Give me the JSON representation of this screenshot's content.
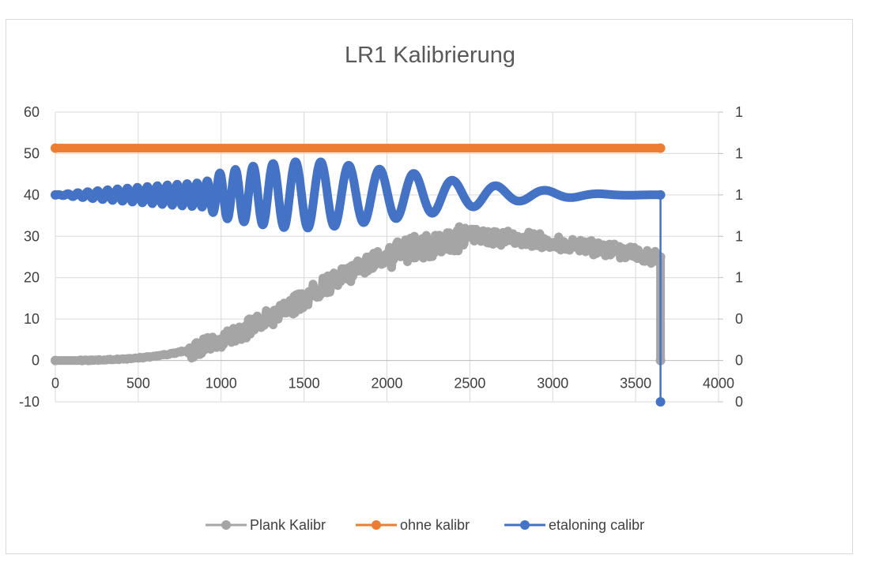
{
  "chart_data": {
    "type": "line",
    "title": "LR1 Kalibrierung",
    "xlabel": "",
    "ylabel": "",
    "xlim": [
      0,
      4000
    ],
    "ylim": [
      -10,
      60
    ],
    "x_ticks": [
      "0",
      "500",
      "1000",
      "1500",
      "2000",
      "2500",
      "3000",
      "3500",
      "4000"
    ],
    "y_ticks": [
      "60",
      "50",
      "40",
      "30",
      "20",
      "10",
      "0",
      "-10"
    ],
    "y2_ticks": [
      "1",
      "1",
      "1",
      "1",
      "1",
      "0",
      "0",
      "0"
    ],
    "grid": true,
    "legend_position": "bottom",
    "series": [
      {
        "name": "Plank Kalibr",
        "color": "#a5a5a5",
        "axis": "left",
        "description": "noisy sigmoid rising from 0 to ~30",
        "points": [
          [
            0,
            0
          ],
          [
            200,
            0
          ],
          [
            400,
            0.3
          ],
          [
            500,
            0.6
          ],
          [
            600,
            1
          ],
          [
            700,
            1.6
          ],
          [
            800,
            2.5
          ],
          [
            900,
            3.5
          ],
          [
            1000,
            5
          ],
          [
            1100,
            6.5
          ],
          [
            1200,
            8.5
          ],
          [
            1300,
            10.5
          ],
          [
            1400,
            12.5
          ],
          [
            1500,
            15
          ],
          [
            1600,
            17.5
          ],
          [
            1700,
            19.5
          ],
          [
            1800,
            21.5
          ],
          [
            1900,
            23.5
          ],
          [
            2000,
            25
          ],
          [
            2100,
            26.5
          ],
          [
            2200,
            27.5
          ],
          [
            2300,
            28
          ],
          [
            2400,
            29
          ],
          [
            2500,
            30
          ],
          [
            2600,
            30
          ],
          [
            2700,
            29.5
          ],
          [
            2800,
            29.5
          ],
          [
            2900,
            29
          ],
          [
            3000,
            28.5
          ],
          [
            3100,
            28
          ],
          [
            3200,
            27.5
          ],
          [
            3300,
            27
          ],
          [
            3400,
            26.5
          ],
          [
            3500,
            26
          ],
          [
            3600,
            25
          ],
          [
            3650,
            25
          ],
          [
            3650,
            0
          ]
        ]
      },
      {
        "name": "ohne kalibr",
        "color": "#ed7d31",
        "axis": "left",
        "points": [
          [
            0,
            51.3
          ],
          [
            3650,
            51.3
          ]
        ]
      },
      {
        "name": "etaloning calibr",
        "color": "#4472c4",
        "axis": "left",
        "description": "oscillation around 40 with varying amplitude and decreasing frequency, then drop to -10 at x=3650",
        "envelope": [
          [
            0,
            0
          ],
          [
            300,
            1.2
          ],
          [
            700,
            2.5
          ],
          [
            900,
            3
          ],
          [
            1000,
            5.5
          ],
          [
            1200,
            7
          ],
          [
            1400,
            8
          ],
          [
            1600,
            8
          ],
          [
            1800,
            7
          ],
          [
            2000,
            6
          ],
          [
            2200,
            5
          ],
          [
            2400,
            3.5
          ],
          [
            2600,
            2.5
          ],
          [
            2800,
            1.5
          ],
          [
            3000,
            1
          ],
          [
            3200,
            0.4
          ],
          [
            3400,
            0.1
          ],
          [
            3650,
            0
          ]
        ],
        "period": [
          [
            0,
            60
          ],
          [
            900,
            60
          ],
          [
            1000,
            90
          ],
          [
            1500,
            150
          ],
          [
            2000,
            200
          ],
          [
            2500,
            260
          ],
          [
            3000,
            320
          ],
          [
            3650,
            400
          ]
        ],
        "center": 40,
        "end_points": [
          [
            3650,
            40
          ],
          [
            3650,
            -10
          ]
        ]
      }
    ]
  }
}
